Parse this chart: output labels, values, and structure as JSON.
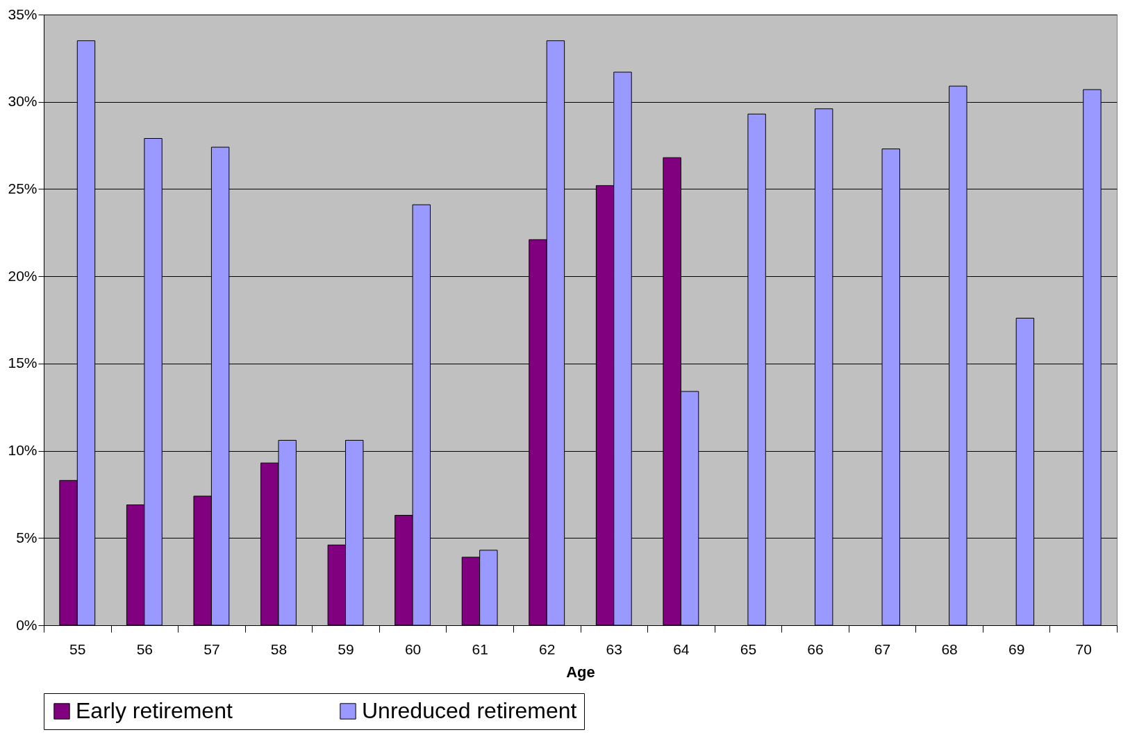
{
  "chart_data": {
    "type": "bar",
    "xlabel": "Age",
    "categories": [
      "55",
      "56",
      "57",
      "58",
      "59",
      "60",
      "61",
      "62",
      "63",
      "64",
      "65",
      "66",
      "67",
      "68",
      "69",
      "70"
    ],
    "series": [
      {
        "name": "Early retirement",
        "color": "#800080",
        "values": [
          8.3,
          6.9,
          7.4,
          9.3,
          4.6,
          6.3,
          3.9,
          22.1,
          25.2,
          26.8,
          null,
          null,
          null,
          null,
          null,
          null
        ]
      },
      {
        "name": "Unreduced retirement",
        "color": "#9999ff",
        "values": [
          33.5,
          27.9,
          27.4,
          10.6,
          10.6,
          24.1,
          4.3,
          33.5,
          31.7,
          13.4,
          29.3,
          29.6,
          27.3,
          30.9,
          17.6,
          30.7
        ]
      }
    ],
    "ylim": [
      0,
      35
    ],
    "yticks": [
      {
        "value": 0,
        "label": "0%"
      },
      {
        "value": 5,
        "label": "5%"
      },
      {
        "value": 10,
        "label": "10%"
      },
      {
        "value": 15,
        "label": "15%"
      },
      {
        "value": 20,
        "label": "20%"
      },
      {
        "value": 25,
        "label": "25%"
      },
      {
        "value": 30,
        "label": "30%"
      },
      {
        "value": 35,
        "label": "35%"
      }
    ],
    "grid": "y",
    "legend": "bottom"
  }
}
